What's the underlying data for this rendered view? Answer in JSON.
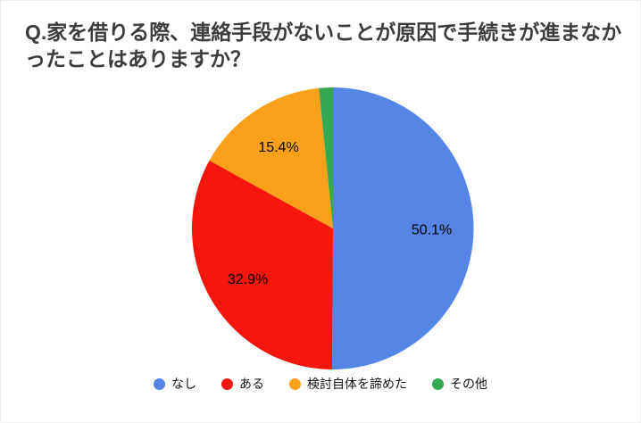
{
  "title": "Q.家を借りる際、連絡手段がないことが原因で手続きが進まなかったことはありますか？",
  "chart_data": {
    "type": "pie",
    "title": "Q.家を借りる際、連絡手段がないことが原因で手続きが進まなかったことはありますか？",
    "direction": "clockwise",
    "start_angle_deg": 0,
    "legend_position": "bottom",
    "slices": [
      {
        "name": "なし",
        "value": 50.1,
        "label": "50.1%",
        "color": "#5585E5"
      },
      {
        "name": "ある",
        "value": 32.9,
        "label": "32.9%",
        "color": "#F5170D"
      },
      {
        "name": "検討自体を諦めた",
        "value": 15.4,
        "label": "15.4%",
        "color": "#FBA019"
      },
      {
        "name": "その他",
        "value": 1.6,
        "label": "",
        "color": "#34A853"
      }
    ]
  }
}
